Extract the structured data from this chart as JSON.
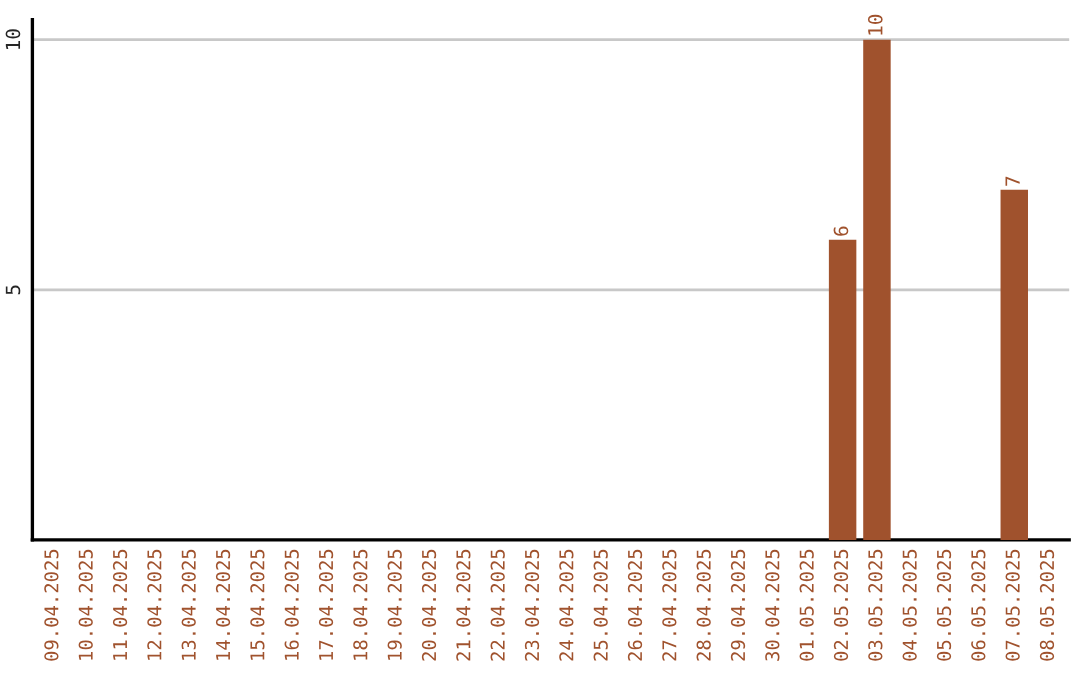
{
  "chart_data": {
    "type": "bar",
    "categories": [
      "09.04.2025",
      "10.04.2025",
      "11.04.2025",
      "12.04.2025",
      "13.04.2025",
      "14.04.2025",
      "15.04.2025",
      "16.04.2025",
      "17.04.2025",
      "18.04.2025",
      "19.04.2025",
      "20.04.2025",
      "21.04.2025",
      "22.04.2025",
      "23.04.2025",
      "24.04.2025",
      "25.04.2025",
      "26.04.2025",
      "27.04.2025",
      "28.04.2025",
      "29.04.2025",
      "30.04.2025",
      "01.05.2025",
      "02.05.2025",
      "03.05.2025",
      "04.05.2025",
      "05.05.2025",
      "06.05.2025",
      "07.05.2025",
      "08.05.2025"
    ],
    "series": [
      {
        "color": "#a0522d",
        "values": [
          0,
          0,
          0,
          0,
          0,
          0,
          0,
          0,
          0,
          0,
          0,
          0,
          0,
          0,
          0,
          0,
          0,
          0,
          0,
          0,
          0,
          0,
          0,
          6,
          10,
          0,
          0,
          0,
          7,
          0
        ],
        "value_labels": [
          null,
          null,
          null,
          null,
          null,
          null,
          null,
          null,
          null,
          null,
          null,
          null,
          null,
          null,
          null,
          null,
          null,
          null,
          null,
          null,
          null,
          null,
          null,
          "6",
          "10",
          null,
          null,
          null,
          "7",
          null
        ]
      }
    ],
    "ylim": [
      0,
      10.4
    ],
    "yticks": [
      5,
      10
    ],
    "grid": "y",
    "legend": false
  }
}
